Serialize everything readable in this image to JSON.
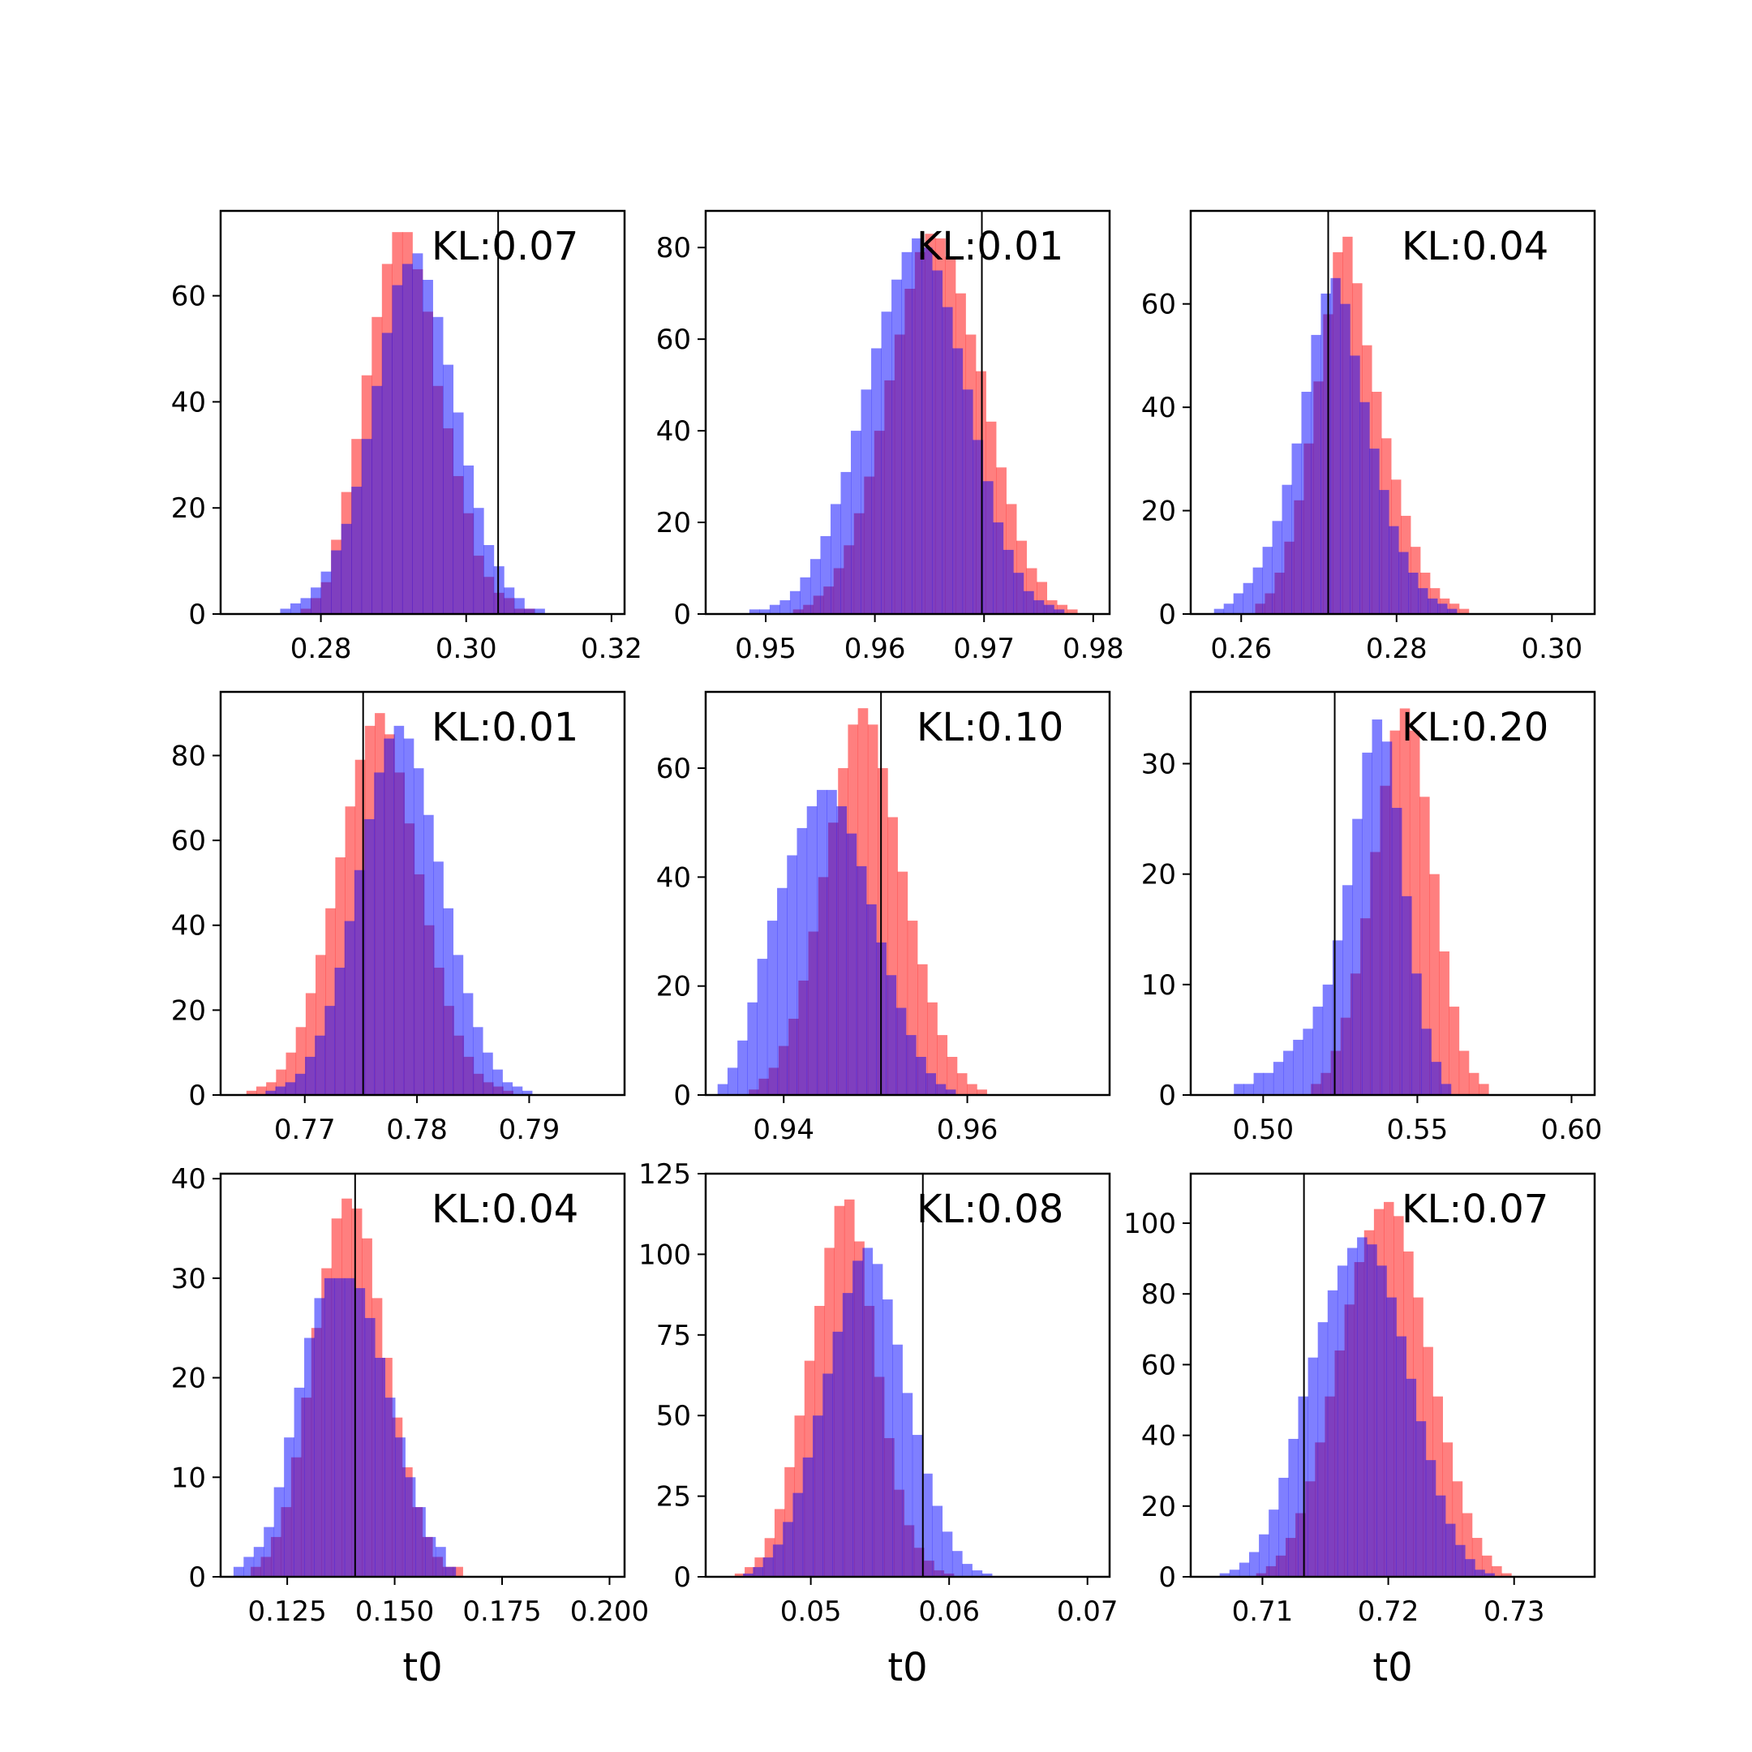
{
  "figure": {
    "red_color": "#ff0000",
    "blue_color": "#0000ff",
    "overlap_hint": "#7f3fbf"
  },
  "chart_data": [
    {
      "type": "histogram",
      "annotation": "KL:0.07",
      "xlabel": "",
      "xlim": [
        0.2662,
        0.3218
      ],
      "ylim": [
        0,
        76
      ],
      "xticks": [
        0.28,
        0.3,
        0.32
      ],
      "xtick_labels": [
        "0.28",
        "0.30",
        "0.32"
      ],
      "yticks": [
        0,
        20,
        40,
        60
      ],
      "ytick_labels": [
        "0",
        "20",
        "40",
        "60"
      ],
      "vline": 0.3044,
      "red": {
        "x0": 0.2772,
        "bin_width": 0.0014,
        "values": [
          1,
          3,
          6,
          14,
          23,
          33,
          45,
          56,
          66,
          72,
          72,
          65,
          57,
          43,
          35,
          26,
          19,
          11,
          7,
          4,
          3,
          1,
          1
        ]
      },
      "blue": {
        "x0": 0.2744,
        "bin_width": 0.0014,
        "values": [
          1,
          2,
          3,
          5,
          8,
          12,
          17,
          24,
          33,
          43,
          53,
          62,
          66,
          68,
          63,
          56,
          47,
          38,
          28,
          20,
          13,
          9,
          5,
          3,
          1,
          1
        ]
      }
    },
    {
      "type": "histogram",
      "annotation": "KL:0.01",
      "xlabel": "",
      "xlim": [
        0.9445,
        0.9815
      ],
      "ylim": [
        0,
        88
      ],
      "xticks": [
        0.95,
        0.96,
        0.97,
        0.98
      ],
      "xtick_labels": [
        "0.95",
        "0.96",
        "0.97",
        "0.98"
      ],
      "yticks": [
        0,
        20,
        40,
        60,
        80
      ],
      "ytick_labels": [
        "0",
        "20",
        "40",
        "60",
        "80"
      ],
      "vline": 0.9698,
      "red": {
        "x0": 0.9525,
        "bin_width": 0.00093,
        "values": [
          1,
          2,
          4,
          6,
          10,
          15,
          22,
          30,
          40,
          51,
          61,
          71,
          79,
          83,
          82,
          78,
          70,
          61,
          53,
          42,
          32,
          24,
          16,
          10,
          7,
          3,
          2,
          1
        ]
      },
      "blue": {
        "x0": 0.9485,
        "bin_width": 0.00093,
        "values": [
          1,
          1,
          2,
          3,
          5,
          8,
          12,
          17,
          24,
          31,
          40,
          49,
          58,
          66,
          73,
          79,
          82,
          80,
          75,
          67,
          58,
          49,
          38,
          29,
          20,
          14,
          9,
          5,
          3,
          2,
          1
        ]
      }
    },
    {
      "type": "histogram",
      "annotation": "KL:0.04",
      "xlabel": "",
      "xlim": [
        0.2535,
        0.3055
      ],
      "ylim": [
        0,
        78
      ],
      "xticks": [
        0.26,
        0.28,
        0.3
      ],
      "xtick_labels": [
        "0.26",
        "0.28",
        "0.30"
      ],
      "yticks": [
        0,
        20,
        40,
        60
      ],
      "ytick_labels": [
        "0",
        "20",
        "40",
        "60"
      ],
      "vline": 0.2712,
      "red": {
        "x0": 0.2618,
        "bin_width": 0.00125,
        "values": [
          2,
          4,
          8,
          14,
          22,
          33,
          45,
          58,
          70,
          73,
          64,
          52,
          43,
          34,
          26,
          19,
          13,
          8,
          5,
          3,
          2,
          1
        ]
      },
      "blue": {
        "x0": 0.2565,
        "bin_width": 0.00125,
        "values": [
          1,
          2,
          4,
          6,
          9,
          13,
          18,
          25,
          33,
          43,
          54,
          62,
          65,
          60,
          50,
          41,
          32,
          24,
          17,
          12,
          8,
          5,
          3,
          2,
          1
        ]
      }
    },
    {
      "type": "histogram",
      "annotation": "KL:0.01",
      "xlabel": "",
      "xlim": [
        0.7625,
        0.7985
      ],
      "ylim": [
        0,
        95
      ],
      "xticks": [
        0.77,
        0.78,
        0.79
      ],
      "xtick_labels": [
        "0.77",
        "0.78",
        "0.79"
      ],
      "yticks": [
        0,
        20,
        40,
        60,
        80
      ],
      "ytick_labels": [
        "0",
        "20",
        "40",
        "60",
        "80"
      ],
      "vline": 0.7752,
      "red": {
        "x0": 0.7648,
        "bin_width": 0.00088,
        "values": [
          1,
          2,
          3,
          6,
          10,
          16,
          24,
          33,
          44,
          56,
          68,
          79,
          87,
          90,
          85,
          76,
          64,
          52,
          40,
          30,
          21,
          14,
          9,
          5,
          3,
          2,
          1
        ]
      },
      "blue": {
        "x0": 0.7665,
        "bin_width": 0.00088,
        "values": [
          1,
          2,
          3,
          5,
          9,
          14,
          21,
          30,
          41,
          53,
          65,
          76,
          84,
          87,
          84,
          77,
          66,
          55,
          44,
          33,
          24,
          16,
          10,
          6,
          3,
          2,
          1
        ]
      }
    },
    {
      "type": "histogram",
      "annotation": "KL:0.10",
      "xlabel": "",
      "xlim": [
        0.9315,
        0.9755
      ],
      "ylim": [
        0,
        74
      ],
      "xticks": [
        0.94,
        0.96
      ],
      "xtick_labels": [
        "0.94",
        "0.96"
      ],
      "yticks": [
        0,
        20,
        40,
        60
      ],
      "ytick_labels": [
        "0",
        "20",
        "40",
        "60"
      ],
      "vline": 0.9506,
      "red": {
        "x0": 0.9362,
        "bin_width": 0.00108,
        "values": [
          1,
          3,
          5,
          9,
          14,
          21,
          30,
          40,
          50,
          60,
          68,
          71,
          68,
          60,
          51,
          41,
          32,
          24,
          17,
          11,
          7,
          4,
          2,
          1
        ]
      },
      "blue": {
        "x0": 0.9328,
        "bin_width": 0.00108,
        "values": [
          2,
          5,
          10,
          17,
          25,
          32,
          38,
          44,
          49,
          53,
          56,
          56,
          53,
          48,
          42,
          35,
          28,
          22,
          16,
          11,
          7,
          4,
          2,
          1
        ]
      }
    },
    {
      "type": "histogram",
      "annotation": "KL:0.20",
      "xlabel": "",
      "xlim": [
        0.4765,
        0.6075
      ],
      "ylim": [
        0,
        36.5
      ],
      "xticks": [
        0.5,
        0.55,
        0.6
      ],
      "xtick_labels": [
        "0.50",
        "0.55",
        "0.60"
      ],
      "yticks": [
        0,
        10,
        20,
        30
      ],
      "ytick_labels": [
        "0",
        "10",
        "20",
        "30"
      ],
      "vline": 0.5232,
      "red": {
        "x0": 0.5155,
        "bin_width": 0.0032,
        "values": [
          1,
          2,
          4,
          7,
          11,
          16,
          22,
          28,
          33,
          35,
          33,
          27,
          20,
          13,
          8,
          4,
          2,
          1
        ]
      },
      "blue": {
        "x0": 0.4905,
        "bin_width": 0.0032,
        "values": [
          1,
          1,
          2,
          2,
          3,
          4,
          5,
          6,
          8,
          10,
          14,
          19,
          25,
          31,
          34,
          32,
          26,
          18,
          11,
          6,
          3,
          1
        ]
      }
    },
    {
      "type": "histogram",
      "annotation": "KL:0.04",
      "xlabel": "t0",
      "xlim": [
        0.1095,
        0.2035
      ],
      "ylim": [
        0,
        40.5
      ],
      "xticks": [
        0.125,
        0.15,
        0.175,
        0.2
      ],
      "xtick_labels": [
        "0.125",
        "0.150",
        "0.175",
        "0.200"
      ],
      "yticks": [
        0,
        10,
        20,
        30,
        40
      ],
      "ytick_labels": [
        "0",
        "10",
        "20",
        "30",
        "40"
      ],
      "vline": 0.1408,
      "red": {
        "x0": 0.1165,
        "bin_width": 0.00235,
        "values": [
          1,
          2,
          4,
          7,
          12,
          18,
          25,
          31,
          36,
          38,
          37,
          34,
          28,
          22,
          16,
          11,
          7,
          4,
          2,
          1,
          1
        ]
      },
      "blue": {
        "x0": 0.1125,
        "bin_width": 0.00235,
        "values": [
          1,
          2,
          3,
          5,
          9,
          14,
          19,
          24,
          28,
          30,
          30,
          30,
          29,
          26,
          22,
          18,
          14,
          10,
          7,
          4,
          3,
          1
        ]
      }
    },
    {
      "type": "histogram",
      "annotation": "KL:0.08",
      "xlabel": "t0",
      "xlim": [
        0.0424,
        0.0716
      ],
      "ylim": [
        0,
        125
      ],
      "xticks": [
        0.05,
        0.06,
        0.07
      ],
      "xtick_labels": [
        "0.05",
        "0.06",
        "0.07"
      ],
      "yticks": [
        0,
        25,
        50,
        75,
        100,
        125
      ],
      "ytick_labels": [
        "0",
        "25",
        "50",
        "75",
        "100",
        "125"
      ],
      "vline": 0.0581,
      "red": {
        "x0": 0.0445,
        "bin_width": 0.00072,
        "values": [
          1,
          3,
          6,
          12,
          21,
          34,
          50,
          67,
          84,
          102,
          115,
          117,
          104,
          84,
          62,
          43,
          27,
          16,
          9,
          5,
          2,
          1
        ]
      },
      "blue": {
        "x0": 0.0451,
        "bin_width": 0.00072,
        "values": [
          1,
          3,
          6,
          10,
          17,
          26,
          37,
          50,
          63,
          76,
          88,
          98,
          102,
          97,
          86,
          72,
          57,
          44,
          32,
          22,
          14,
          8,
          4,
          2,
          1
        ]
      }
    },
    {
      "type": "histogram",
      "annotation": "KL:0.07",
      "xlabel": "t0",
      "xlim": [
        0.7043,
        0.7364
      ],
      "ylim": [
        0,
        114
      ],
      "xticks": [
        0.71,
        0.72,
        0.73
      ],
      "xtick_labels": [
        "0.71",
        "0.72",
        "0.73"
      ],
      "yticks": [
        0,
        20,
        40,
        60,
        80,
        100
      ],
      "ytick_labels": [
        "0",
        "20",
        "40",
        "60",
        "80",
        "100"
      ],
      "vline": 0.7133,
      "red": {
        "x0": 0.7095,
        "bin_width": 0.00078,
        "values": [
          1,
          3,
          6,
          11,
          18,
          27,
          38,
          51,
          64,
          77,
          89,
          98,
          104,
          106,
          102,
          92,
          79,
          65,
          51,
          38,
          27,
          18,
          11,
          6,
          3,
          1
        ]
      },
      "blue": {
        "x0": 0.7066,
        "bin_width": 0.00078,
        "values": [
          1,
          2,
          4,
          7,
          12,
          19,
          28,
          39,
          51,
          62,
          72,
          81,
          88,
          93,
          96,
          94,
          88,
          79,
          68,
          56,
          44,
          33,
          23,
          15,
          9,
          5,
          2,
          1
        ]
      }
    }
  ]
}
